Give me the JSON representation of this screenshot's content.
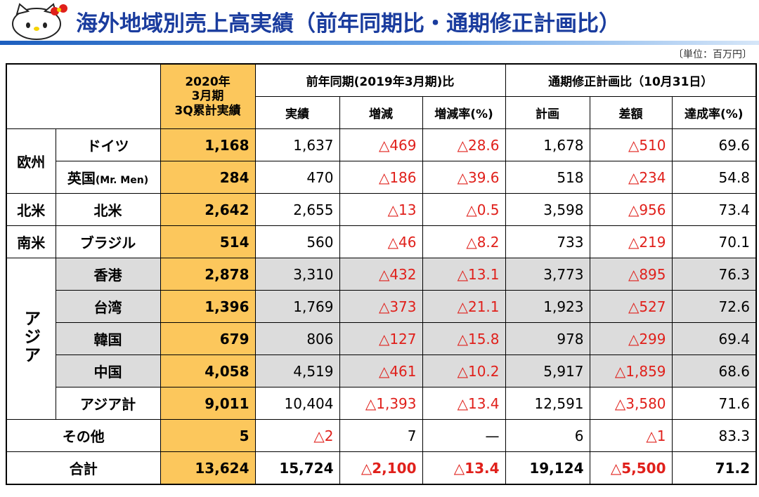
{
  "header": {
    "title": "海外地域別売上高実績（前年同期比・通期修正計画比）",
    "unit": "〔単位：百万円〕"
  },
  "table": {
    "col_current": "2020年\n3月期\n3Q累計実績",
    "group_prev": "前年同期(2019年3月期)比",
    "group_plan": "通期修正計画比（10月31日）",
    "subcols": [
      "実績",
      "増減",
      "増減率(%)",
      "計画",
      "差額",
      "達成率(%)"
    ],
    "groups": [
      {
        "region": "欧州",
        "rows": [
          {
            "name": "ドイツ",
            "values": [
              "1,168",
              "1,637",
              "△469",
              "△28.6",
              "1,678",
              "△510",
              "69.6"
            ]
          },
          {
            "name": "英国",
            "note": "(Mr. Men)",
            "values": [
              "284",
              "470",
              "△186",
              "△39.6",
              "518",
              "△234",
              "54.8"
            ]
          }
        ]
      },
      {
        "region": "北米",
        "rows": [
          {
            "name": "北米",
            "values": [
              "2,642",
              "2,655",
              "△13",
              "△0.5",
              "3,598",
              "△956",
              "73.4"
            ]
          }
        ]
      },
      {
        "region": "南米",
        "rows": [
          {
            "name": "ブラジル",
            "values": [
              "514",
              "560",
              "△46",
              "△8.2",
              "733",
              "△219",
              "70.1"
            ]
          }
        ]
      },
      {
        "region": "アジア",
        "rows": [
          {
            "name": "香港",
            "values": [
              "2,878",
              "3,310",
              "△432",
              "△13.1",
              "3,773",
              "△895",
              "76.3"
            ]
          },
          {
            "name": "台湾",
            "values": [
              "1,396",
              "1,769",
              "△373",
              "△21.1",
              "1,923",
              "△527",
              "72.6"
            ]
          },
          {
            "name": "韓国",
            "values": [
              "679",
              "806",
              "△127",
              "△15.8",
              "978",
              "△299",
              "69.4"
            ]
          },
          {
            "name": "中国",
            "values": [
              "4,058",
              "4,519",
              "△461",
              "△10.2",
              "5,917",
              "△1,859",
              "68.6"
            ]
          },
          {
            "name": "アジア計",
            "values": [
              "9,011",
              "10,404",
              "△1,393",
              "△13.4",
              "12,591",
              "△3,580",
              "71.6"
            ]
          }
        ]
      },
      {
        "label": "その他",
        "values": [
          "5",
          "△2",
          "7",
          "—",
          "6",
          "△1",
          "83.3"
        ]
      },
      {
        "label": "合計",
        "values": [
          "13,624",
          "15,724",
          "△2,100",
          "△13.4",
          "19,124",
          "△5,500",
          "71.2"
        ]
      }
    ]
  }
}
